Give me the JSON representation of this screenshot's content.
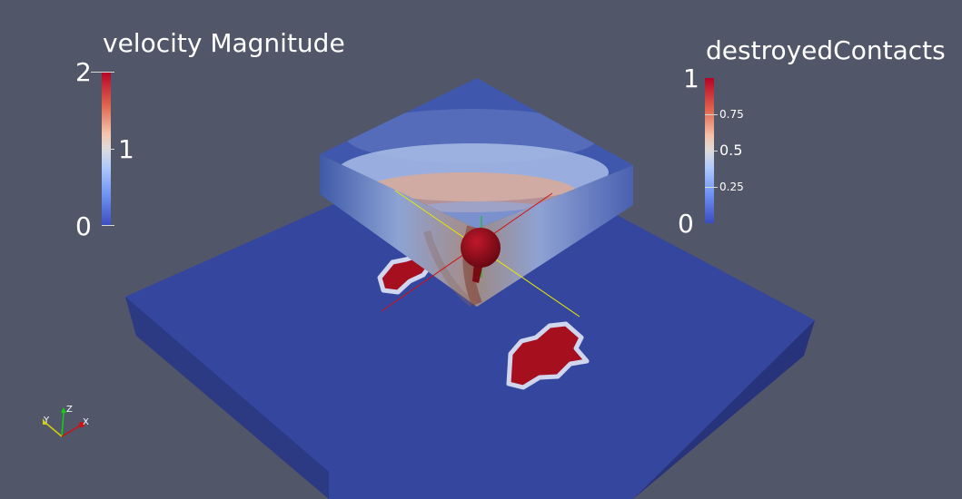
{
  "legend_velocity": {
    "title": "velocity Magnitude",
    "max_label": "2",
    "mid_label": "1",
    "min_label": "0"
  },
  "legend_contacts": {
    "title": "destroyedContacts",
    "max_label": "1",
    "label_075": "0.75",
    "label_05": "0.5",
    "label_025": "0.25",
    "min_label": "0"
  },
  "orientation_axes": {
    "x_label": "X",
    "y_label": "Y",
    "z_label": "Z"
  },
  "colors": {
    "background": "#525669",
    "plate_top": "#35469f",
    "contact_red": "#a50f1e",
    "sphere": "#8e0d18"
  }
}
